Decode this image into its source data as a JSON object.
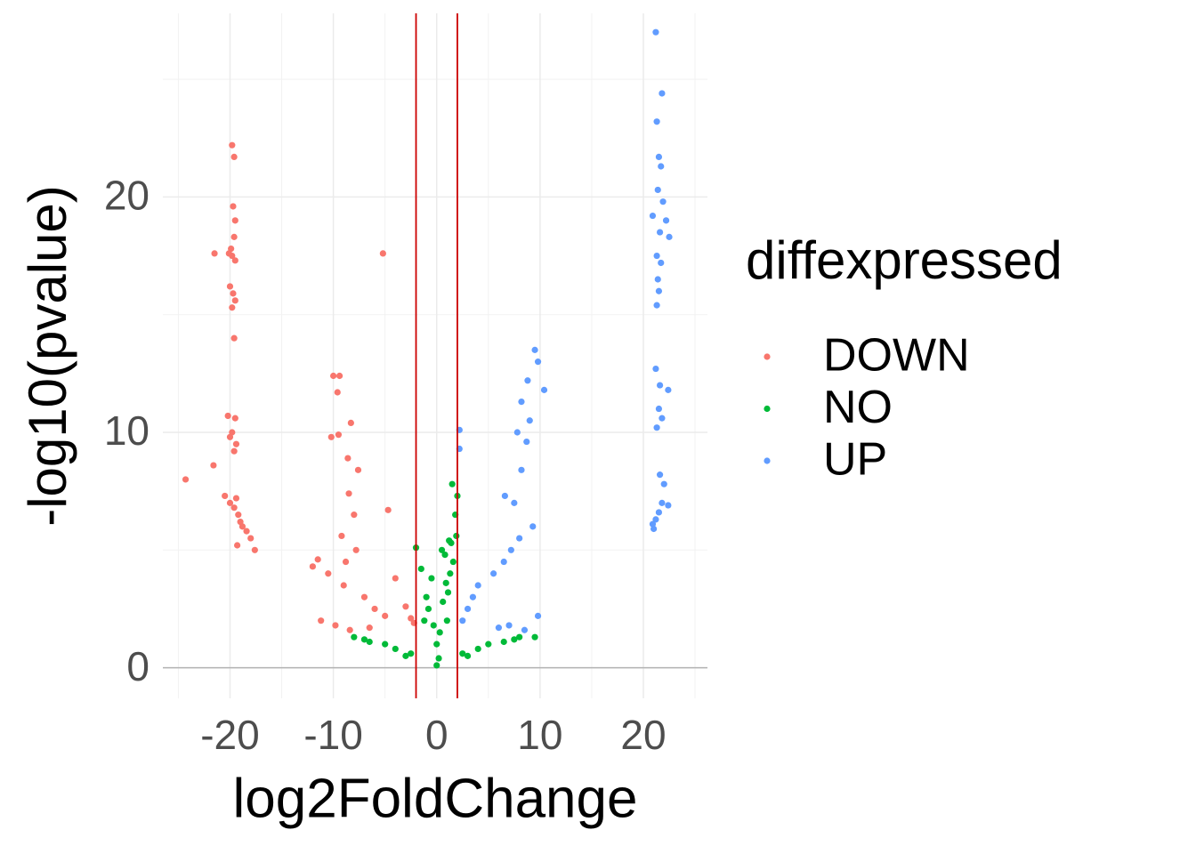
{
  "chart_data": {
    "type": "scatter",
    "x_label": "log2FoldChange",
    "y_label": "-log10(pvalue)",
    "legend_title": "diffexpressed",
    "legend_position": "right",
    "grid": true,
    "xlim": [
      -26.5,
      26.2
    ],
    "ylim": [
      -1.3,
      27.8
    ],
    "xticks": [
      -20,
      -10,
      0,
      10,
      20
    ],
    "yticks": [
      0,
      10,
      20
    ],
    "xminor": [
      -25,
      -15,
      -5,
      5,
      15,
      25
    ],
    "yminor": [
      5,
      15,
      25
    ],
    "vlines": [
      -2,
      2
    ],
    "vline_color": "#cc0000",
    "hlines": [
      0
    ],
    "hline_color": "#b3b3b3",
    "series": [
      {
        "name": "DOWN",
        "color": "#F8766D",
        "x": [
          -19.8,
          -19.6,
          -19.7,
          -19.5,
          -19.6,
          -20.1,
          -19.8,
          -19.5,
          -19.9,
          -20.0,
          -19.7,
          -19.5,
          -19.8,
          -19.6,
          -20.2,
          -19.5,
          -19.8,
          -20.0,
          -19.4,
          -19.6,
          -20.5,
          -20.0,
          -19.6,
          -19.2,
          -19.0,
          -18.8,
          -18.4,
          -18.0,
          -19.3,
          -17.6,
          -19.4,
          -21.5,
          -24.3,
          -21.6,
          -5.2,
          -10.0,
          -9.4,
          -9.6,
          -10.2,
          -9.5,
          -8.3,
          -8.6,
          -7.6,
          -8.5,
          -8.0,
          -9.2,
          -7.8,
          -8.8,
          -10.5,
          -11.5,
          -12.0,
          -9.0,
          -7.0,
          -6.0,
          -5.0,
          -4.7,
          -4.0,
          -3.0,
          -2.5,
          -2.2,
          -6.5,
          -8.4,
          -9.8,
          -11.2
        ],
        "values": [
          22.2,
          21.7,
          19.6,
          19.0,
          18.3,
          17.6,
          17.5,
          17.3,
          17.8,
          16.2,
          15.9,
          15.6,
          15.3,
          14.0,
          10.7,
          10.6,
          10.0,
          9.8,
          9.5,
          9.2,
          7.3,
          7.0,
          6.8,
          6.5,
          6.2,
          6.0,
          5.8,
          5.5,
          5.2,
          5.0,
          7.2,
          17.6,
          8.0,
          8.6,
          17.6,
          12.4,
          12.4,
          11.7,
          9.8,
          9.9,
          10.4,
          8.9,
          8.4,
          7.4,
          6.5,
          5.6,
          5.0,
          4.5,
          4.0,
          4.6,
          4.3,
          3.5,
          3.0,
          2.5,
          2.2,
          6.7,
          3.8,
          2.6,
          2.1,
          1.9,
          1.7,
          1.6,
          1.8,
          2.0
        ]
      },
      {
        "name": "NO",
        "color": "#00BA38",
        "x": [
          0.0,
          1.0,
          -1.0,
          0.5,
          1.5,
          2.0,
          1.8,
          -2.0,
          -1.5,
          0.0,
          5.0,
          -5.0,
          8.0,
          -8.0,
          3.0,
          -3.0,
          1.2,
          0.8,
          -0.5,
          -0.8,
          0.3,
          1.1,
          1.6,
          -1.2,
          0.2,
          4.0,
          -4.0,
          6.5,
          -6.5,
          9.5,
          7.5,
          -7.0,
          2.5,
          -2.5,
          0.6,
          1.4,
          -0.3,
          1.9,
          1.3,
          0.9
        ],
        "values": [
          1.0,
          2.0,
          3.0,
          5.0,
          7.8,
          7.3,
          6.5,
          5.1,
          4.2,
          0.1,
          1.0,
          1.0,
          1.3,
          1.3,
          0.5,
          0.5,
          5.4,
          4.8,
          3.8,
          2.5,
          1.5,
          3.2,
          4.5,
          2.0,
          0.4,
          0.8,
          0.8,
          1.1,
          1.1,
          1.3,
          1.2,
          1.2,
          0.6,
          0.6,
          2.8,
          5.3,
          1.8,
          5.6,
          4.0,
          3.6
        ]
      },
      {
        "name": "UP",
        "color": "#619CFF",
        "x": [
          21.2,
          21.8,
          21.3,
          21.5,
          21.7,
          21.4,
          21.9,
          20.9,
          22.2,
          21.6,
          22.5,
          21.3,
          21.7,
          21.4,
          21.5,
          21.3,
          21.2,
          21.6,
          22.4,
          21.5,
          21.8,
          21.3,
          21.6,
          22.0,
          22.4,
          21.8,
          21.5,
          21.2,
          20.9,
          21.0,
          9.5,
          9.8,
          8.8,
          10.4,
          8.2,
          9.0,
          7.8,
          8.7,
          8.2,
          6.6,
          7.5,
          9.3,
          8.0,
          7.2,
          6.5,
          5.5,
          4.0,
          3.5,
          3.0,
          2.5,
          9.8,
          2.2,
          2.2,
          6.0,
          7.0,
          8.5
        ],
        "values": [
          27.0,
          24.4,
          23.2,
          21.7,
          21.3,
          20.3,
          19.8,
          19.2,
          19.0,
          18.5,
          18.3,
          17.5,
          17.2,
          16.5,
          16.0,
          15.4,
          12.7,
          12.0,
          11.8,
          11.0,
          10.6,
          10.2,
          8.2,
          7.8,
          6.9,
          7.0,
          6.6,
          6.3,
          6.1,
          5.9,
          13.5,
          13.0,
          12.2,
          11.8,
          11.3,
          10.5,
          10.0,
          9.6,
          8.4,
          7.3,
          7.0,
          6.0,
          5.5,
          5.0,
          4.5,
          4.0,
          3.5,
          3.0,
          2.5,
          2.0,
          2.2,
          10.1,
          9.3,
          1.7,
          1.8,
          1.6
        ]
      }
    ]
  }
}
